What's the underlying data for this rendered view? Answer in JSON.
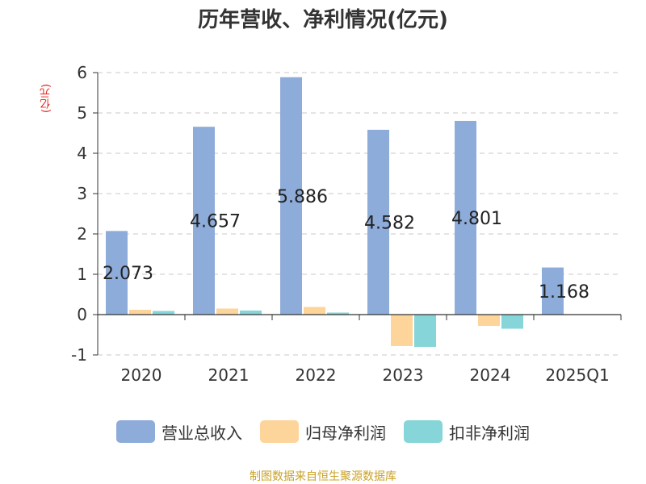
{
  "chart_data": {
    "type": "bar",
    "title": "历年营收、净利情况(亿元)",
    "ylabel": "(亿元)",
    "xlabel": "",
    "categories": [
      "2020",
      "2021",
      "2022",
      "2023",
      "2024",
      "2025Q1"
    ],
    "ylim": [
      -1,
      6
    ],
    "yticks": [
      -1,
      0,
      1,
      2,
      3,
      4,
      5,
      6
    ],
    "grid": true,
    "legend_position": "bottom",
    "series": [
      {
        "name": "营业总收入",
        "color": "#8eacda",
        "values": [
          2.073,
          4.657,
          5.886,
          4.582,
          4.801,
          1.168
        ],
        "labels": [
          "2.073",
          "4.657",
          "5.886",
          "4.582",
          "4.801",
          "1.168"
        ]
      },
      {
        "name": "归母净利润",
        "color": "#fdd59b",
        "values": [
          0.12,
          0.15,
          0.19,
          -0.78,
          -0.28,
          null
        ]
      },
      {
        "name": "扣非净利润",
        "color": "#86d5d8",
        "values": [
          0.09,
          0.1,
          0.05,
          -0.8,
          -0.35,
          null
        ]
      }
    ]
  },
  "source": "制图数据来自恒生聚源数据库"
}
